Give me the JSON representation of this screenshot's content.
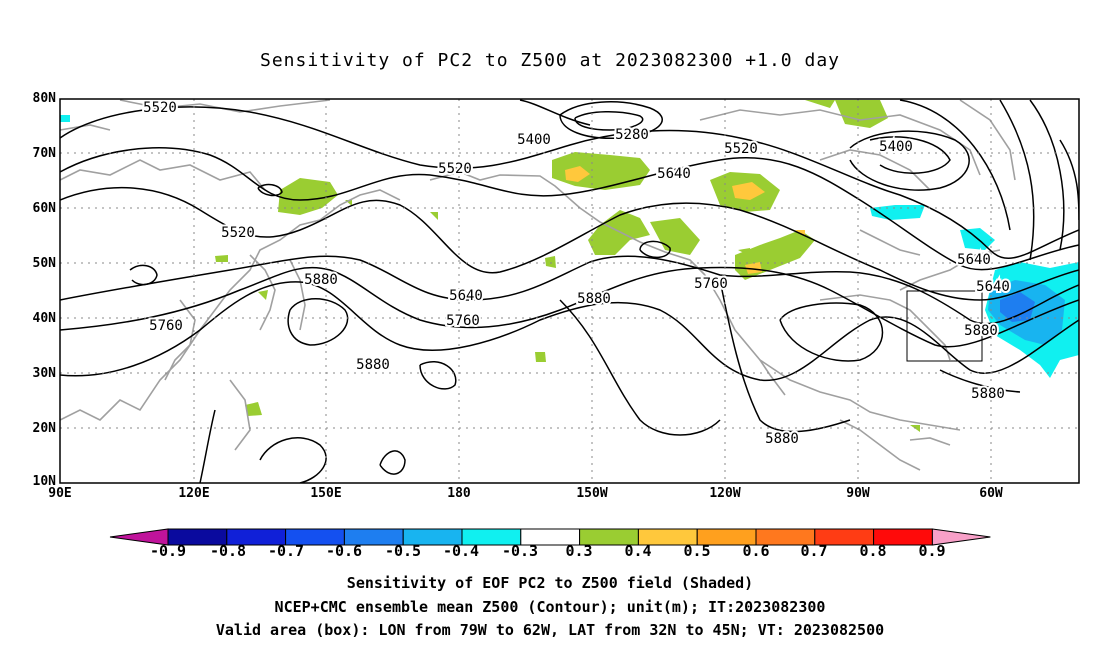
{
  "title": "Sensitivity of PC2 to Z500 at 2023082300 +1.0 day",
  "lat_ticks": [
    "80N",
    "70N",
    "60N",
    "50N",
    "40N",
    "30N",
    "20N",
    "10N"
  ],
  "lon_ticks": [
    "90E",
    "120E",
    "150E",
    "180",
    "150W",
    "120W",
    "90W",
    "60W"
  ],
  "contour_labels": [
    "5520",
    "5280",
    "5400",
    "5520",
    "5400",
    "5520",
    "5640",
    "5640",
    "5520",
    "5640",
    "5880",
    "5640",
    "5880",
    "5760",
    "5760",
    "5760",
    "5880",
    "5880",
    "5880",
    "5880"
  ],
  "colorbar": {
    "labels": [
      "-0.9",
      "-0.8",
      "-0.7",
      "-0.6",
      "-0.5",
      "-0.4",
      "-0.3",
      "0.3",
      "0.4",
      "0.5",
      "0.6",
      "0.7",
      "0.8",
      "0.9"
    ],
    "colors": [
      "#c0139b",
      "#0a0a9e",
      "#1020d8",
      "#1450f0",
      "#1e7ef0",
      "#18b4f0",
      "#10f0f0",
      "#ffffff",
      "#9acd32",
      "#ffc83c",
      "#ffa01e",
      "#ff781e",
      "#ff3c14",
      "#ff0a0a",
      "#f8a0c8"
    ]
  },
  "captions": [
    "Sensitivity of EOF PC2 to Z500 field (Shaded)",
    "NCEP+CMC ensemble mean Z500 (Contour); unit(m); IT:2023082300",
    "Valid area (box): LON from 79W to 62W, LAT from 32N to 45N; VT: 2023082500"
  ],
  "valid_box": {
    "lon_from": "79W",
    "lon_to": "62W",
    "lat_from": "32N",
    "lat_to": "45N"
  }
}
